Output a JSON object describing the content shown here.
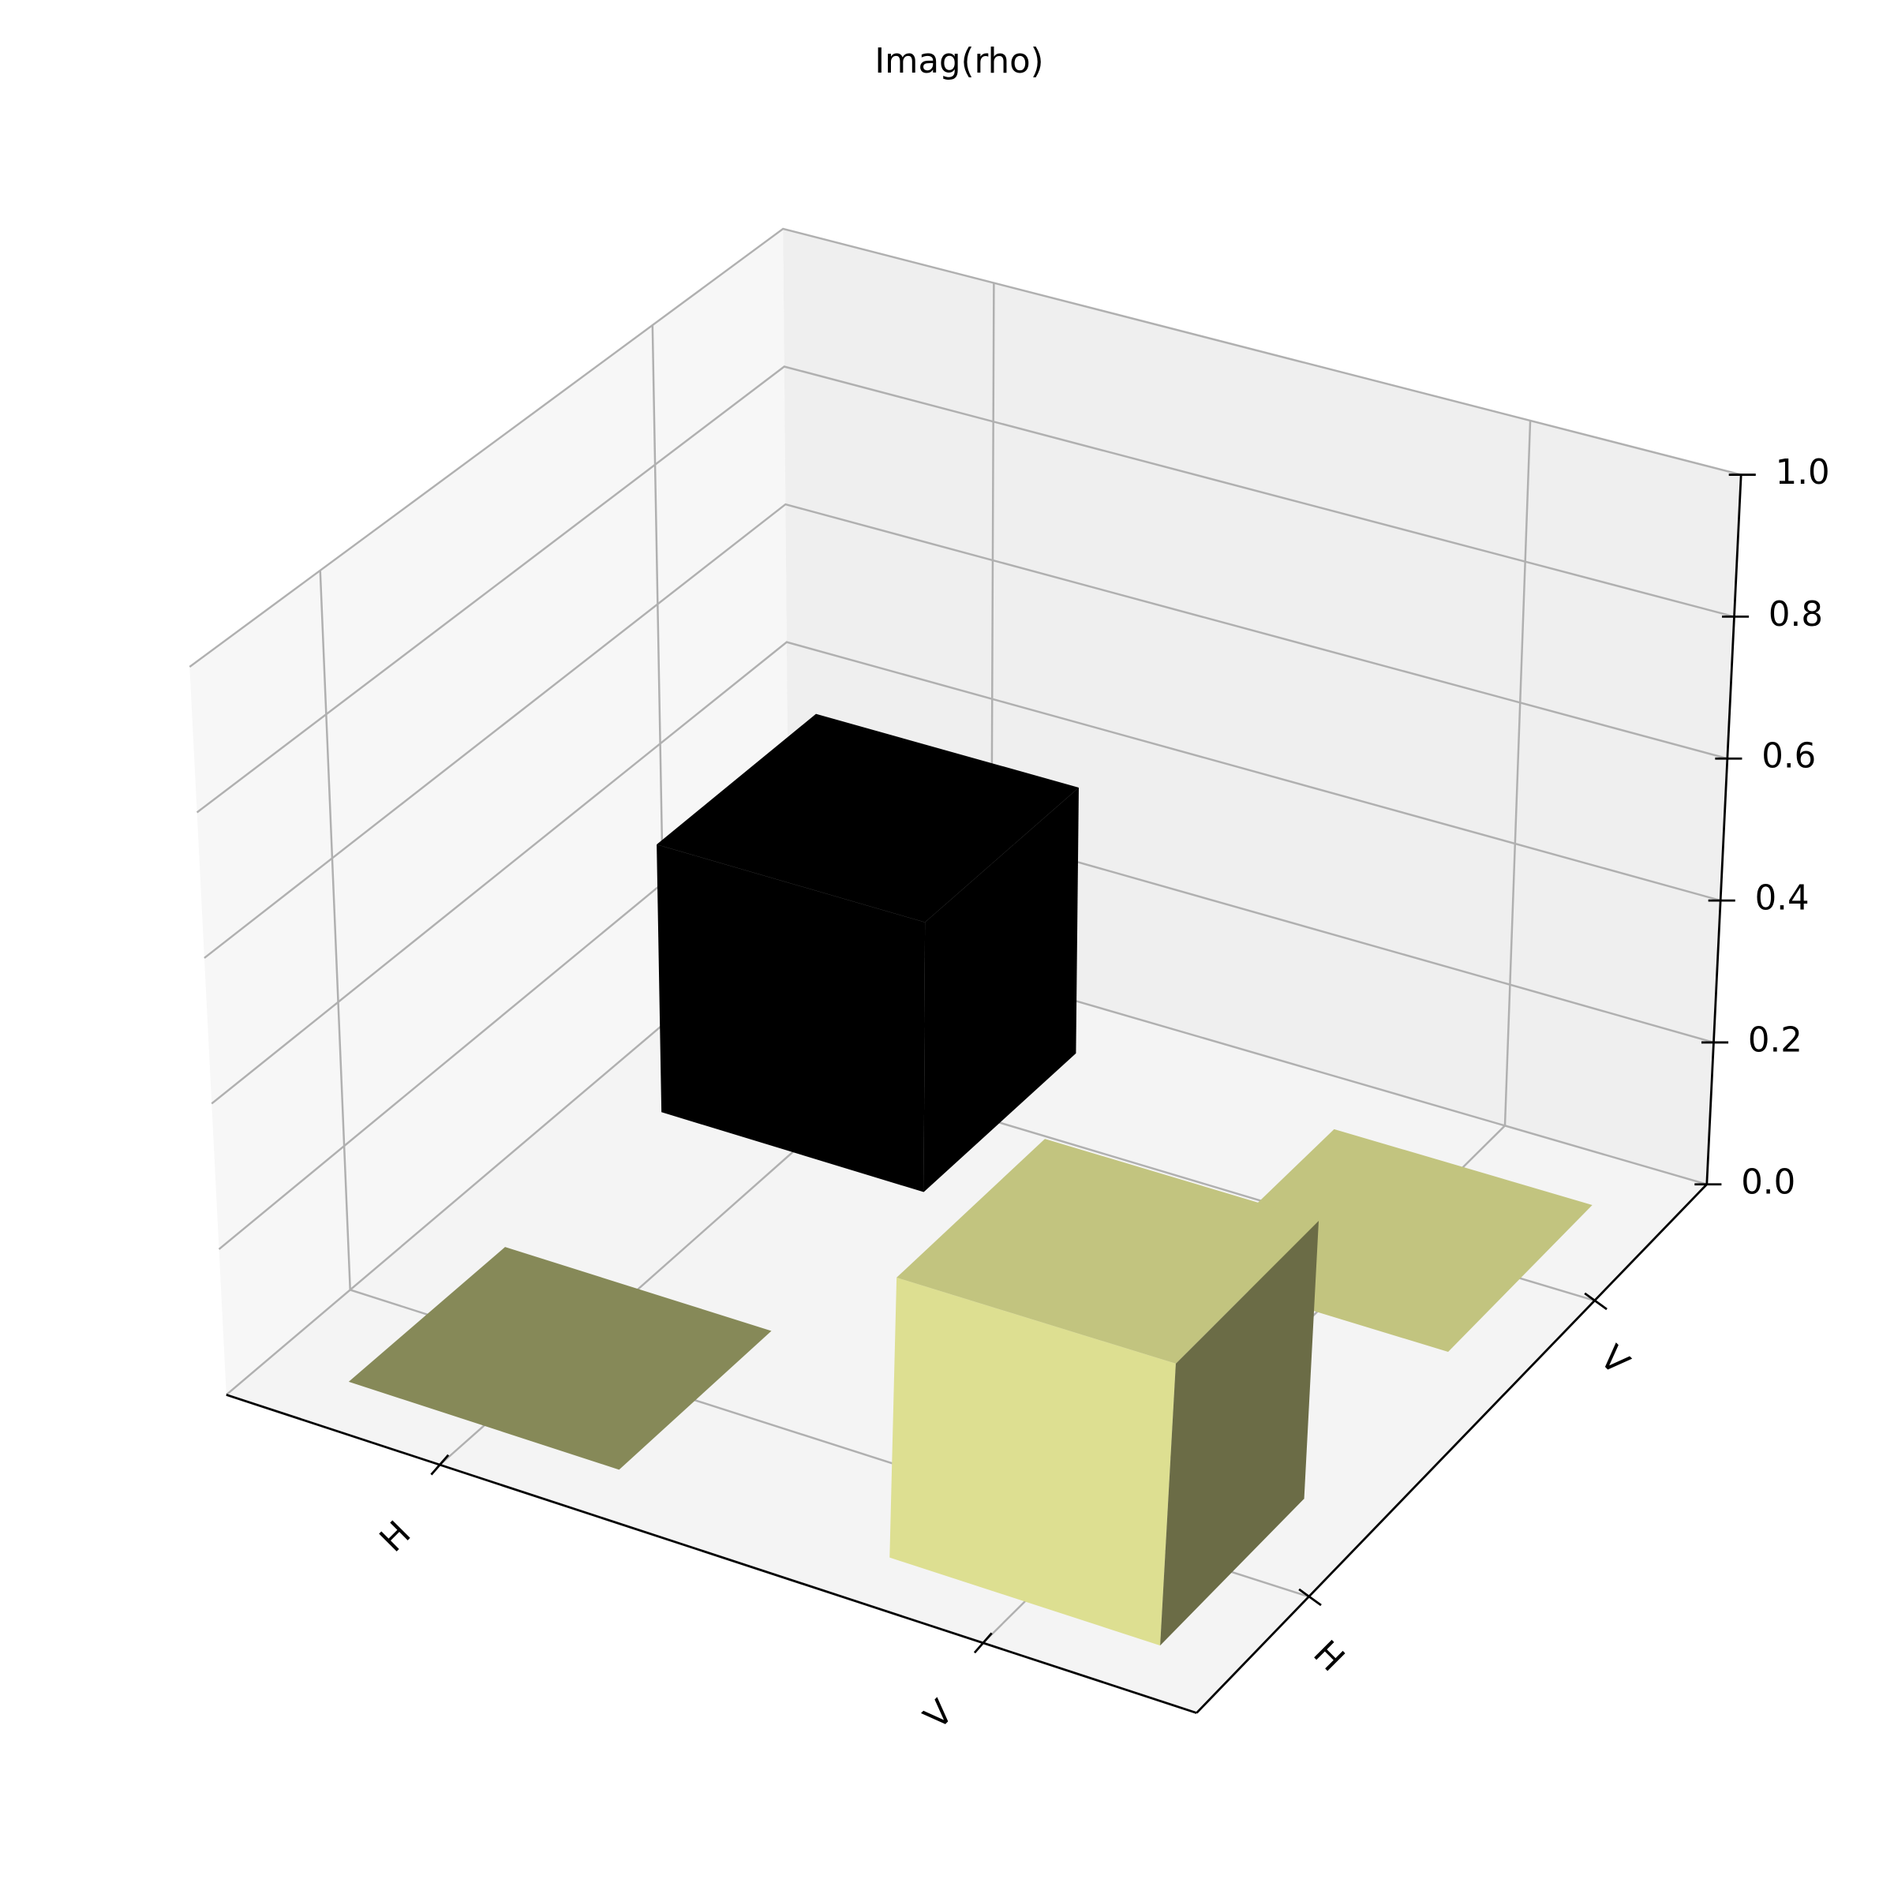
{
  "chart_data": {
    "type": "bar3d",
    "title": "Imag(rho)",
    "x_categories": [
      "H",
      "V"
    ],
    "y_categories": [
      "H",
      "V"
    ],
    "values": [
      [
        0,
        0.38
      ],
      [
        0.38,
        0
      ]
    ],
    "colors": [
      [
        "#868958",
        "#000000"
      ],
      [
        "#c2c47f",
        "#c2c47f"
      ]
    ],
    "zlim": [
      0,
      1
    ],
    "zticks": [
      {
        "value": 0,
        "label": "0.0"
      },
      0.2,
      0.4,
      0.6,
      0.8,
      {
        "value": 1,
        "label": "1.0"
      }
    ],
    "grid": true
  }
}
